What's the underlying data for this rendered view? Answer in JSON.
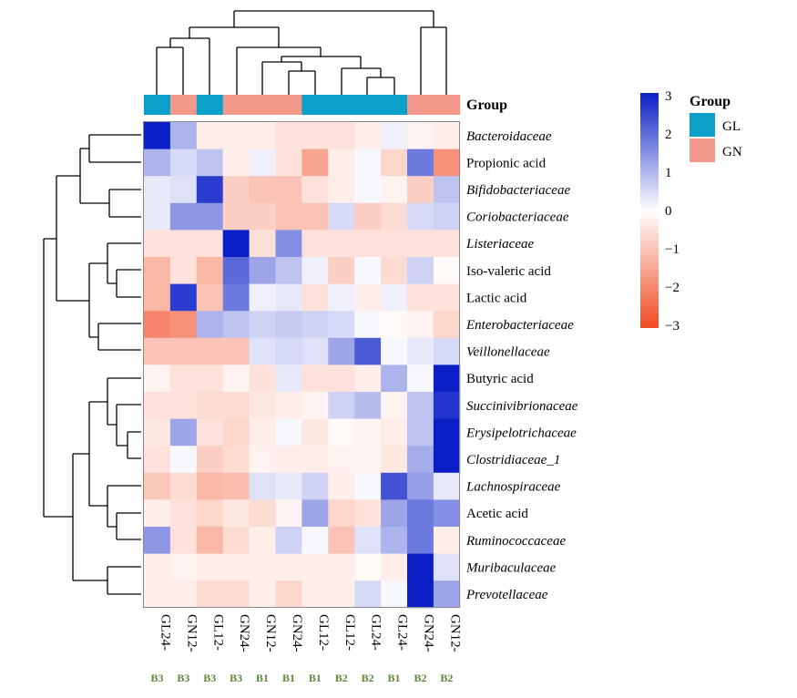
{
  "chart_data": {
    "type": "heatmap",
    "rows": [
      {
        "name": "Bacteroidaceae",
        "italic": true
      },
      {
        "name": "Propionic acid",
        "italic": false
      },
      {
        "name": "Bifidobacteriaceae",
        "italic": true
      },
      {
        "name": "Coriobacteriaceae",
        "italic": true
      },
      {
        "name": "Listeriaceae",
        "italic": true
      },
      {
        "name": "Iso-valeric acid",
        "italic": false
      },
      {
        "name": "Lactic acid",
        "italic": false
      },
      {
        "name": "Enterobacteriaceae",
        "italic": true
      },
      {
        "name": "Veillonellaceae",
        "italic": true
      },
      {
        "name": "Butyric acid",
        "italic": false
      },
      {
        "name": "Succinivibrionaceae",
        "italic": true
      },
      {
        "name": "Erysipelotrichaceae",
        "italic": true
      },
      {
        "name": "Clostridiaceae_1",
        "italic": true
      },
      {
        "name": "Lachnospiraceae",
        "italic": true
      },
      {
        "name": "Acetic acid",
        "italic": false
      },
      {
        "name": "Ruminococcaceae",
        "italic": true
      },
      {
        "name": "Muribaculaceae",
        "italic": true
      },
      {
        "name": "Prevotellaceae",
        "italic": true
      }
    ],
    "columns": [
      {
        "name": "GL24-",
        "sub": "B3",
        "group": "GL"
      },
      {
        "name": "GN12-",
        "sub": "B3",
        "group": "GN"
      },
      {
        "name": "GL12-",
        "sub": "B3",
        "group": "GL"
      },
      {
        "name": "GN24-",
        "sub": "B3",
        "group": "GN"
      },
      {
        "name": "GN12-",
        "sub": "B1",
        "group": "GN"
      },
      {
        "name": "GN24-",
        "sub": "B1",
        "group": "GN"
      },
      {
        "name": "GL12-",
        "sub": "B1",
        "group": "GL"
      },
      {
        "name": "GL12-",
        "sub": "B2",
        "group": "GL"
      },
      {
        "name": "GL24-",
        "sub": "B2",
        "group": "GL"
      },
      {
        "name": "GL24-",
        "sub": "B1",
        "group": "GL"
      },
      {
        "name": "GN24-",
        "sub": "B2",
        "group": "GN"
      },
      {
        "name": "GN12-",
        "sub": "B2",
        "group": "GN"
      }
    ],
    "values": [
      [
        3.0,
        1.0,
        -0.3,
        -0.3,
        -0.3,
        -0.5,
        -0.5,
        -0.5,
        -0.3,
        0.2,
        -0.2,
        -0.3
      ],
      [
        1.0,
        0.5,
        0.8,
        -0.3,
        0.2,
        -0.5,
        -1.5,
        -0.3,
        0.1,
        -0.7,
        1.8,
        -1.8
      ],
      [
        0.3,
        0.4,
        2.6,
        -0.8,
        -1.0,
        -1.0,
        -0.5,
        -0.3,
        0.1,
        -0.2,
        -0.8,
        0.8
      ],
      [
        0.3,
        1.4,
        1.4,
        -0.8,
        -0.8,
        -1.0,
        -1.0,
        0.5,
        -0.8,
        -0.6,
        0.5,
        0.6
      ],
      [
        -0.5,
        -0.5,
        -0.5,
        3.0,
        -0.5,
        1.5,
        -0.5,
        -0.5,
        -0.5,
        -0.5,
        -0.5,
        -0.5
      ],
      [
        -1.2,
        -0.5,
        -1.2,
        2.0,
        1.2,
        0.8,
        0.2,
        -0.8,
        0.1,
        -0.6,
        0.6,
        -0.1
      ],
      [
        -1.2,
        2.6,
        -1.0,
        1.8,
        0.2,
        0.3,
        -0.5,
        0.2,
        -0.3,
        0.2,
        -0.5,
        -0.5
      ],
      [
        -2.0,
        -1.8,
        1.0,
        0.8,
        0.6,
        0.7,
        0.6,
        0.5,
        0.1,
        -0.1,
        -0.2,
        -0.7
      ],
      [
        -1.0,
        -1.0,
        -1.0,
        -1.0,
        0.4,
        0.5,
        0.4,
        1.2,
        2.2,
        0.1,
        0.3,
        0.5
      ],
      [
        -0.2,
        -0.5,
        -0.5,
        -0.2,
        -0.5,
        0.3,
        -0.5,
        -0.5,
        -0.3,
        1.0,
        0.1,
        3.0
      ],
      [
        -0.5,
        -0.5,
        -0.6,
        -0.6,
        -0.4,
        -0.3,
        -0.2,
        0.6,
        0.9,
        -0.2,
        0.8,
        2.7
      ],
      [
        -0.4,
        1.2,
        -0.5,
        -0.7,
        -0.3,
        0.1,
        -0.4,
        -0.1,
        -0.2,
        -0.3,
        0.8,
        3.0
      ],
      [
        -0.5,
        0.1,
        -0.8,
        -0.6,
        -0.2,
        -0.3,
        -0.3,
        -0.2,
        -0.2,
        -0.4,
        1.1,
        3.0
      ],
      [
        -0.9,
        -0.6,
        -1.2,
        -1.1,
        0.4,
        0.3,
        0.6,
        -0.3,
        0.1,
        2.3,
        1.3,
        0.3
      ],
      [
        -0.3,
        -0.5,
        -0.7,
        -0.4,
        -0.6,
        -0.2,
        1.2,
        -0.7,
        -0.5,
        1.2,
        1.8,
        1.5
      ],
      [
        1.4,
        -0.5,
        -1.2,
        -0.6,
        -0.3,
        0.6,
        0.1,
        -1.0,
        0.4,
        1.0,
        1.8,
        -0.3
      ],
      [
        -0.3,
        -0.2,
        -0.3,
        -0.3,
        -0.3,
        -0.3,
        -0.3,
        -0.3,
        -0.1,
        -0.3,
        3.0,
        0.4
      ],
      [
        -0.3,
        -0.3,
        -0.6,
        -0.6,
        -0.3,
        -0.7,
        -0.3,
        -0.3,
        0.5,
        0.1,
        3.0,
        1.2
      ]
    ],
    "group_label": "Group",
    "color_scale": {
      "min": -3,
      "max": 3,
      "ticks": [
        "3",
        "2",
        "1",
        "0",
        "−1",
        "−2",
        "−3"
      ],
      "colors": {
        "low": "#f04a21",
        "mid": "#ffffff",
        "high": "#0a1fc6"
      }
    },
    "legend": {
      "title": "Group",
      "entries": [
        {
          "name": "GL",
          "color": "#0aa0c9"
        },
        {
          "name": "GN",
          "color": "#f2998c"
        }
      ]
    }
  }
}
